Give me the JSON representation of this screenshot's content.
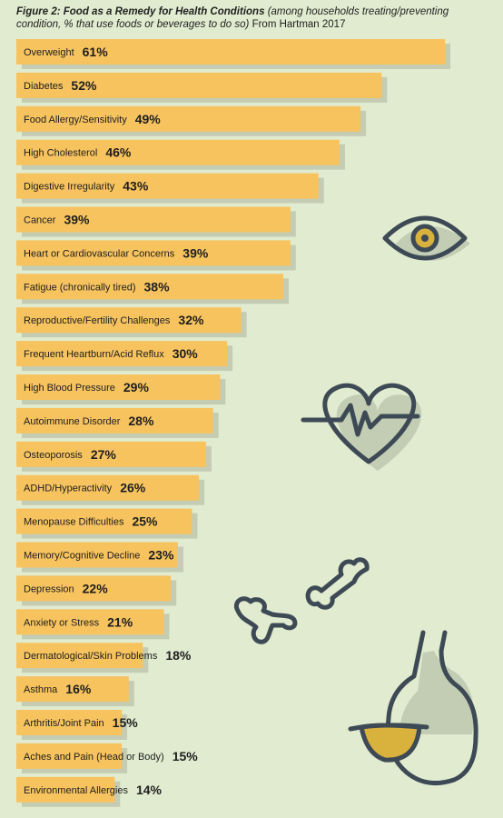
{
  "caption": {
    "title": "Figure 2: Food as a Remedy for Health Conditions",
    "note": "(among households treating/preventing condition, % that use foods or beverages to do so)",
    "source": "From Hartman 2017"
  },
  "colors": {
    "background": "#e1ebcf",
    "bar": "#f7c35f",
    "bar_shadow": "#c4ccb3",
    "illustration_line": "#3d4a55",
    "illustration_accent": "#d9b13d"
  },
  "illustrations": [
    "eye-icon",
    "heartbeat-heart-icon",
    "bone-icon",
    "stomach-icon"
  ],
  "chart_data": {
    "type": "bar",
    "orientation": "horizontal",
    "unit": "%",
    "categories": [
      "Overweight",
      "Diabetes",
      "Food Allergy/Sensitivity",
      "High Cholesterol",
      "Digestive Irregularity",
      "Cancer",
      "Heart or Cardiovascular Concerns",
      "Fatigue (chronically tired)",
      "Reproductive/Fertility Challenges",
      "Frequent Heartburn/Acid Reflux",
      "High Blood Pressure",
      "Autoimmune Disorder",
      "Osteoporosis",
      "ADHD/Hyperactivity",
      "Menopause Difficulties",
      "Memory/Cognitive Decline",
      "Depression",
      "Anxiety or Stress",
      "Dermatological/Skin Problems",
      "Asthma",
      "Arthritis/Joint Pain",
      "Aches and Pain (Head or Body)",
      "Environmental Allergies"
    ],
    "values": [
      61,
      52,
      49,
      46,
      43,
      39,
      39,
      38,
      32,
      30,
      29,
      28,
      27,
      26,
      25,
      23,
      22,
      21,
      18,
      16,
      15,
      15,
      14
    ],
    "value_labels": [
      "61%",
      "52%",
      "49%",
      "46%",
      "43%",
      "39%",
      "39%",
      "38%",
      "32%",
      "30%",
      "29%",
      "28%",
      "27%",
      "26%",
      "25%",
      "23%",
      "22%",
      "21%",
      "18%",
      "16%",
      "15%",
      "15%",
      "14%"
    ],
    "xlim": [
      0,
      61
    ],
    "grid": false,
    "legend": "none"
  }
}
